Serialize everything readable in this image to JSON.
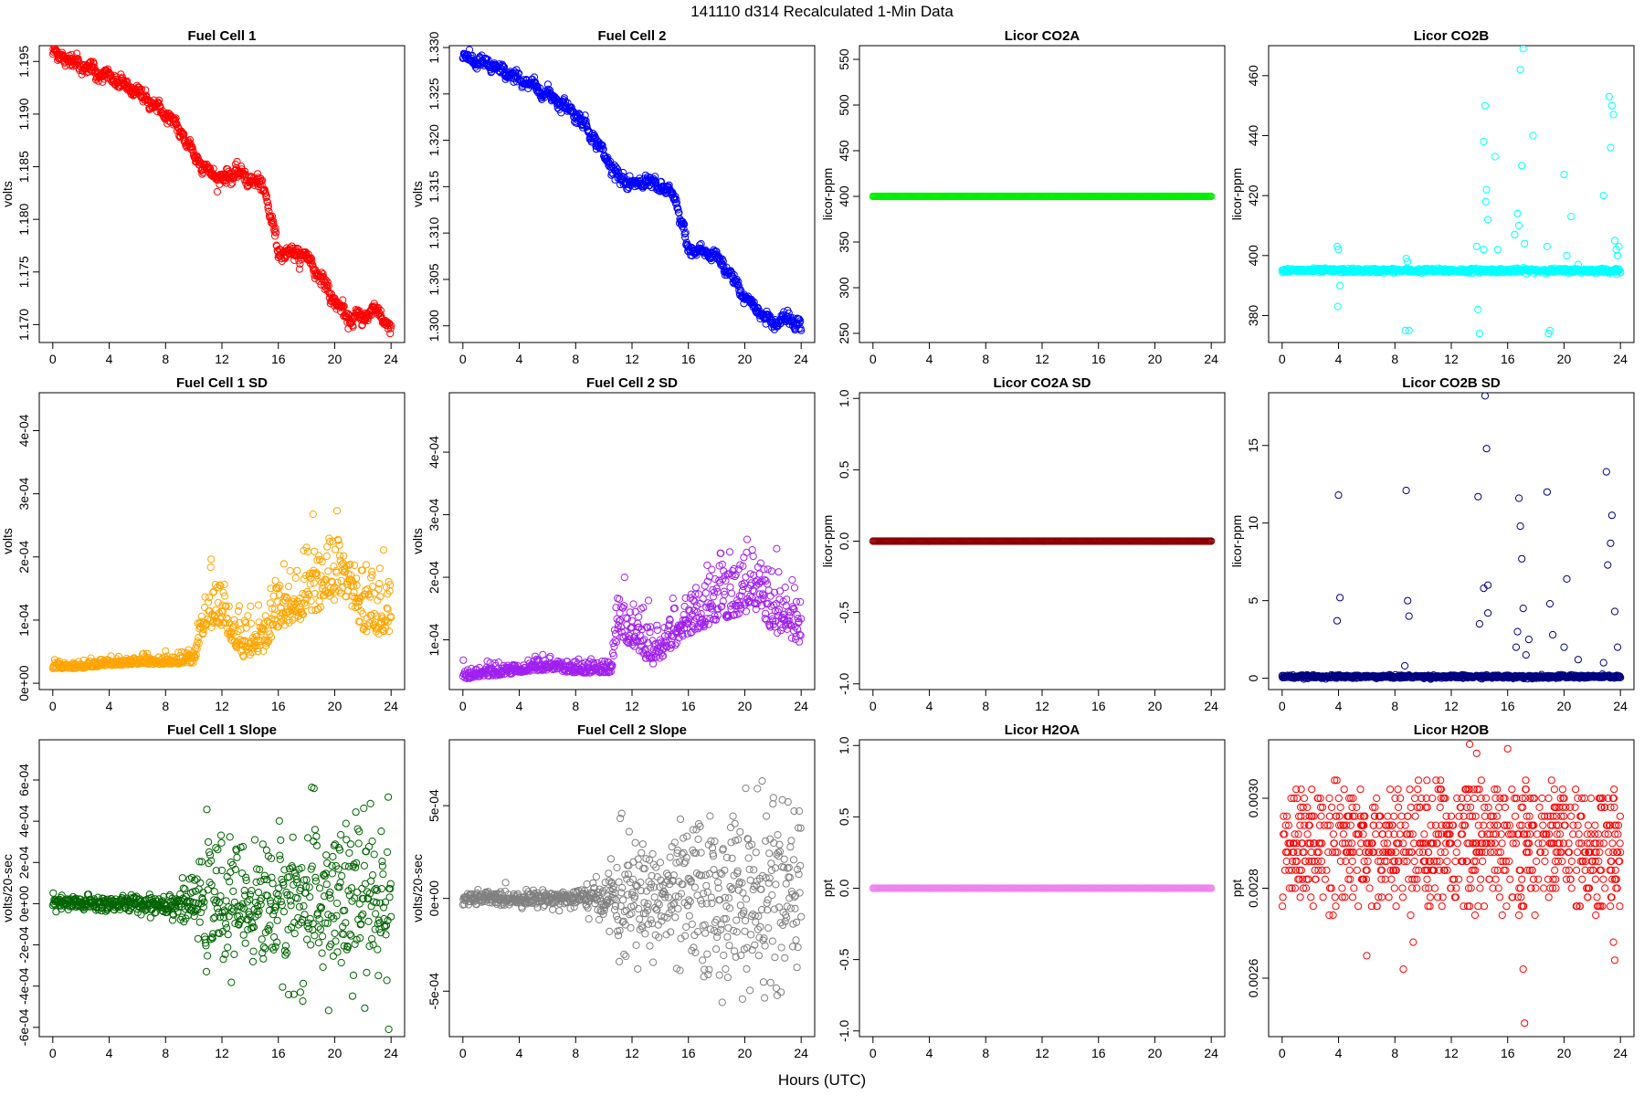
{
  "figure": {
    "suptitle": "141110   d314   Recalculated 1-Min Data",
    "xlabel": "Hours (UTC)"
  },
  "chart_data": [
    {
      "id": "fc1",
      "type": "scatter",
      "title": "Fuel Cell 1",
      "ylabel": "volts",
      "color": "#ff0000",
      "xlim": [
        0,
        24
      ],
      "ylim": [
        1.1683,
        1.1965
      ],
      "xticks": [
        0,
        4,
        8,
        12,
        16,
        20,
        24
      ],
      "yticks": [
        1.17,
        1.175,
        1.18,
        1.185,
        1.19,
        1.195
      ],
      "ytick_labels": [
        "1.170",
        "1.175",
        "1.180",
        "1.185",
        "1.190",
        "1.195"
      ],
      "x": [
        0,
        1,
        2,
        3,
        4,
        5,
        6,
        7,
        8,
        9,
        10,
        11,
        12,
        13,
        14,
        15,
        16,
        17,
        18,
        19,
        20,
        21,
        22,
        23,
        24
      ],
      "y": [
        1.1958,
        1.1953,
        1.1947,
        1.1941,
        1.1935,
        1.1928,
        1.192,
        1.1911,
        1.19,
        1.1885,
        1.1862,
        1.1846,
        1.1838,
        1.1845,
        1.1838,
        1.183,
        1.177,
        1.1768,
        1.1765,
        1.1745,
        1.1722,
        1.1705,
        1.1707,
        1.1715,
        1.1695
      ]
    },
    {
      "id": "fc2",
      "type": "scatter",
      "title": "Fuel Cell 2",
      "ylabel": "volts",
      "color": "#0000ff",
      "xlim": [
        0,
        24
      ],
      "ylim": [
        1.2982,
        1.3302
      ],
      "xticks": [
        0,
        4,
        8,
        12,
        16,
        20,
        24
      ],
      "yticks": [
        1.3,
        1.305,
        1.31,
        1.315,
        1.32,
        1.325,
        1.33
      ],
      "ytick_labels": [
        "1.300",
        "1.305",
        "1.310",
        "1.315",
        "1.320",
        "1.325",
        "1.330"
      ],
      "x": [
        0,
        1,
        2,
        3,
        4,
        5,
        6,
        7,
        8,
        9,
        10,
        11,
        12,
        13,
        14,
        15,
        16,
        17,
        18,
        19,
        20,
        21,
        22,
        23,
        24
      ],
      "y": [
        1.329,
        1.3285,
        1.328,
        1.3273,
        1.3266,
        1.3258,
        1.325,
        1.324,
        1.3228,
        1.321,
        1.3185,
        1.3162,
        1.315,
        1.3157,
        1.315,
        1.314,
        1.3082,
        1.308,
        1.3075,
        1.3055,
        1.3032,
        1.3015,
        1.3002,
        1.301,
        1.3
      ]
    },
    {
      "id": "co2a",
      "type": "scatter",
      "title": "Licor CO2A",
      "ylabel": "licor-ppm",
      "color": "#00ee00",
      "xlim": [
        0,
        24
      ],
      "ylim": [
        240,
        565
      ],
      "xticks": [
        0,
        4,
        8,
        12,
        16,
        20,
        24
      ],
      "yticks": [
        250,
        300,
        350,
        400,
        450,
        500,
        550
      ],
      "ytick_labels": [
        "250",
        "300",
        "350",
        "400",
        "450",
        "500",
        "550"
      ],
      "x": [
        0,
        24
      ],
      "y": [
        400,
        400
      ]
    },
    {
      "id": "co2b",
      "type": "scatter",
      "title": "Licor CO2B",
      "ylabel": "licor-ppm",
      "color": "#00ffff",
      "xlim": [
        0,
        24
      ],
      "ylim": [
        371,
        470
      ],
      "xticks": [
        0,
        4,
        8,
        12,
        16,
        20,
        24
      ],
      "yticks": [
        380,
        400,
        420,
        440,
        460
      ],
      "ytick_labels": [
        "380",
        "400",
        "420",
        "440",
        "460"
      ],
      "baseline": 395,
      "outliers_x": [
        3.9,
        4.0,
        4.1,
        3.95,
        8.8,
        8.9,
        8.75,
        9.0,
        13.8,
        14.0,
        13.9,
        14.3,
        14.4,
        14.5,
        14.45,
        14.6,
        14.3,
        15.1,
        15.3,
        16.5,
        16.8,
        17.0,
        16.9,
        17.1,
        16.7,
        17.2,
        17.8,
        18.8,
        19.0,
        18.9,
        20.0,
        20.2,
        20.5,
        21.0,
        22.8,
        23.2,
        23.3,
        23.4,
        23.5,
        23.6,
        23.7,
        23.8,
        23.9
      ],
      "outliers_y": [
        403,
        402,
        390,
        383,
        399,
        398,
        375,
        375,
        403,
        374,
        382,
        438,
        450,
        422,
        418,
        412,
        402,
        433,
        402,
        407,
        410,
        430,
        462,
        469,
        414,
        404,
        440,
        403,
        375,
        374,
        427,
        400,
        413,
        397,
        420,
        453,
        436,
        450,
        447,
        405,
        402,
        400,
        403
      ]
    },
    {
      "id": "fc1sd",
      "type": "scatter",
      "title": "Fuel Cell 1 SD",
      "ylabel": "volts",
      "color": "#ffa500",
      "xlim": [
        0,
        24
      ],
      "ylim": [
        -1e-05,
        0.00046
      ],
      "xticks": [
        0,
        4,
        8,
        12,
        16,
        20,
        24
      ],
      "yticks": [
        0,
        0.0001,
        0.0002,
        0.0003,
        0.0004
      ],
      "ytick_labels": [
        "0e+00",
        "1e-04",
        "2e-04",
        "3e-04",
        "4e-04"
      ],
      "x": [
        0,
        2,
        4,
        6,
        8,
        10,
        10.8,
        12,
        13.5,
        15,
        16,
        18,
        20,
        21,
        22,
        24
      ],
      "y": [
        2.5e-05,
        2.5e-05,
        3e-05,
        3.2e-05,
        3.2e-05,
        3.5e-05,
        0.0001,
        0.0001,
        5e-05,
        6e-05,
        0.0001,
        0.00012,
        0.00015,
        0.00015,
        0.0001,
        9e-05
      ],
      "spread": [
        6e-06,
        6e-06,
        6e-06,
        7e-06,
        8e-06,
        1e-05,
        4e-05,
        4e-05,
        3e-05,
        3e-05,
        4e-05,
        5e-05,
        6e-05,
        6e-05,
        6e-05,
        5e-05
      ]
    },
    {
      "id": "fc2sd",
      "type": "scatter",
      "title": "Fuel Cell 2 SD",
      "ylabel": "volts",
      "color": "#a020f0",
      "xlim": [
        0,
        24
      ],
      "ylim": [
        2.05e-05,
        0.000495
      ],
      "xticks": [
        0,
        4,
        8,
        12,
        16,
        20,
        24
      ],
      "yticks": [
        0.0001,
        0.0002,
        0.0003,
        0.0004
      ],
      "ytick_labels": [
        "1e-04",
        "2e-04",
        "3e-04",
        "4e-04"
      ],
      "x": [
        0,
        2,
        4,
        6,
        8,
        10,
        10.5,
        11,
        12,
        13.5,
        15,
        16,
        18,
        20,
        21,
        22,
        24
      ],
      "y": [
        4e-05,
        4.5e-05,
        5e-05,
        5.5e-05,
        5e-05,
        5e-05,
        5e-05,
        0.00012,
        0.0001,
        7e-05,
        0.0001,
        0.00012,
        0.00014,
        0.00016,
        0.00016,
        0.00013,
        0.00011
      ],
      "spread": [
        1e-05,
        1e-05,
        1e-05,
        1e-05,
        1e-05,
        1e-05,
        1e-05,
        4e-05,
        4e-05,
        3e-05,
        4e-05,
        4e-05,
        5e-05,
        6e-05,
        6e-05,
        6e-05,
        5e-05
      ]
    },
    {
      "id": "co2asd",
      "type": "scatter",
      "title": "Licor CO2A SD",
      "ylabel": "licor-ppm",
      "color": "#8b0000",
      "xlim": [
        0,
        24
      ],
      "ylim": [
        -1.04,
        1.04
      ],
      "xticks": [
        0,
        4,
        8,
        12,
        16,
        20,
        24
      ],
      "yticks": [
        -1.0,
        -0.5,
        0.0,
        0.5,
        1.0
      ],
      "ytick_labels": [
        "-1.0",
        "-0.5",
        "0.0",
        "0.5",
        "1.0"
      ],
      "x": [
        0,
        24
      ],
      "y": [
        0,
        0
      ]
    },
    {
      "id": "co2bsd",
      "type": "scatter",
      "title": "Licor CO2B SD",
      "ylabel": "licor-ppm",
      "color": "#000080",
      "xlim": [
        0,
        24
      ],
      "ylim": [
        -0.73,
        18.4
      ],
      "xticks": [
        0,
        4,
        8,
        12,
        16,
        20,
        24
      ],
      "yticks": [
        0,
        5,
        10,
        15
      ],
      "ytick_labels": [
        "0",
        "5",
        "10",
        "15"
      ],
      "baseline": 0.1,
      "outliers_x": [
        4.0,
        4.1,
        3.9,
        8.8,
        8.9,
        9.0,
        8.7,
        13.9,
        14.0,
        14.4,
        14.5,
        14.6,
        14.3,
        14.6,
        16.8,
        16.9,
        17.0,
        17.1,
        16.7,
        16.6,
        17.3,
        17.5,
        18.8,
        19.0,
        19.2,
        20.2,
        20.0,
        21.0,
        23.0,
        23.1,
        23.3,
        23.4,
        23.6,
        23.8,
        22.8
      ],
      "outliers_y": [
        11.8,
        5.2,
        3.7,
        12.1,
        5.0,
        4.0,
        0.8,
        11.7,
        3.5,
        18.2,
        14.8,
        6.0,
        5.8,
        4.2,
        11.6,
        9.8,
        7.7,
        4.5,
        3.0,
        2.0,
        1.5,
        2.5,
        12.0,
        4.8,
        2.8,
        6.4,
        2.0,
        1.2,
        13.3,
        7.3,
        8.7,
        10.5,
        4.3,
        2.0,
        1.0
      ]
    },
    {
      "id": "fc1slope",
      "type": "scatter",
      "title": "Fuel Cell 1 Slope",
      "ylabel": "volts/20-sec",
      "color": "#006400",
      "xlim": [
        0,
        24
      ],
      "ylim": [
        -0.000645,
        0.000795
      ],
      "xticks": [
        0,
        4,
        8,
        12,
        16,
        20,
        24
      ],
      "yticks": [
        -0.0006,
        -0.0004,
        -0.0002,
        0,
        0.0002,
        0.0004,
        0.0006
      ],
      "ytick_labels": [
        "-6e-04",
        "-4e-04",
        "-2e-04",
        "0e+00",
        "2e-04",
        "4e-04",
        "6e-04"
      ],
      "x": [
        0,
        2,
        4,
        6,
        8,
        10,
        11,
        12,
        14,
        16,
        18,
        20,
        22,
        24
      ],
      "y": [
        0,
        0,
        0,
        0,
        0,
        0,
        0,
        0,
        0,
        0,
        0,
        0,
        0,
        0
      ],
      "spread": [
        2e-05,
        2e-05,
        2e-05,
        2e-05,
        3e-05,
        5e-05,
        0.00015,
        0.00014,
        0.00013,
        0.00017,
        0.0002,
        0.00022,
        0.00022,
        0.0002
      ]
    },
    {
      "id": "fc2slope",
      "type": "scatter",
      "title": "Fuel Cell 2 Slope",
      "ylabel": "volts/20-sec",
      "color": "#808080",
      "xlim": [
        0,
        24
      ],
      "ylim": [
        -0.000745,
        0.000855
      ],
      "xticks": [
        0,
        4,
        8,
        12,
        16,
        20,
        24
      ],
      "yticks": [
        -0.0005,
        0,
        0.0005
      ],
      "ytick_labels": [
        "-5e-04",
        "0e+00",
        "5e-04"
      ],
      "x": [
        0,
        2,
        4,
        6,
        8,
        10,
        11,
        12,
        14,
        16,
        18,
        20,
        22,
        24
      ],
      "y": [
        0,
        0,
        0,
        0,
        0,
        0,
        0,
        0,
        0,
        0,
        0,
        0,
        0,
        0
      ],
      "spread": [
        2e-05,
        2e-05,
        2e-05,
        2e-05,
        3e-05,
        5e-05,
        0.00017,
        0.00016,
        0.00015,
        0.0002,
        0.00023,
        0.00024,
        0.00025,
        0.00022
      ]
    },
    {
      "id": "h2oa",
      "type": "scatter",
      "title": "Licor H2OA",
      "ylabel": "ppt",
      "color": "#ee82ee",
      "xlim": [
        0,
        24
      ],
      "ylim": [
        -1.04,
        1.04
      ],
      "xticks": [
        0,
        4,
        8,
        12,
        16,
        20,
        24
      ],
      "yticks": [
        -1.0,
        -0.5,
        0.0,
        0.5,
        1.0
      ],
      "ytick_labels": [
        "-1.0",
        "-0.5",
        "0.0",
        "0.5",
        "1.0"
      ],
      "x": [
        0,
        24
      ],
      "y": [
        0,
        0
      ]
    },
    {
      "id": "h2ob",
      "type": "scatter",
      "title": "Licor H2OB",
      "ylabel": "ppt",
      "color": "#ff0000",
      "xlim": [
        0,
        24
      ],
      "ylim": [
        0.00247,
        0.00313
      ],
      "xticks": [
        0,
        4,
        8,
        12,
        16,
        20,
        24
      ],
      "yticks": [
        0.0026,
        0.0028,
        0.003
      ],
      "ytick_labels": [
        "0.0026",
        "0.0028",
        "0.0030"
      ],
      "levels": [
        0.00274,
        0.00276,
        0.00278,
        0.0028,
        0.00282,
        0.00284,
        0.00286,
        0.00288,
        0.0029,
        0.00292,
        0.00294,
        0.00296,
        0.00298,
        0.003,
        0.00302,
        0.00304
      ],
      "level_weights": [
        0.03,
        0.05,
        0.07,
        0.1,
        0.1,
        0.12,
        0.15,
        0.18,
        0.2,
        0.18,
        0.16,
        0.15,
        0.13,
        0.11,
        0.06,
        0.03
      ],
      "outliers_x": [
        6.0,
        8.6,
        9.3,
        13.3,
        13.8,
        16.0,
        17.1,
        17.2,
        23.5,
        23.6
      ],
      "outliers_y": [
        0.00265,
        0.00262,
        0.00268,
        0.00312,
        0.0031,
        0.00311,
        0.00262,
        0.0025,
        0.00268,
        0.00264
      ]
    }
  ]
}
